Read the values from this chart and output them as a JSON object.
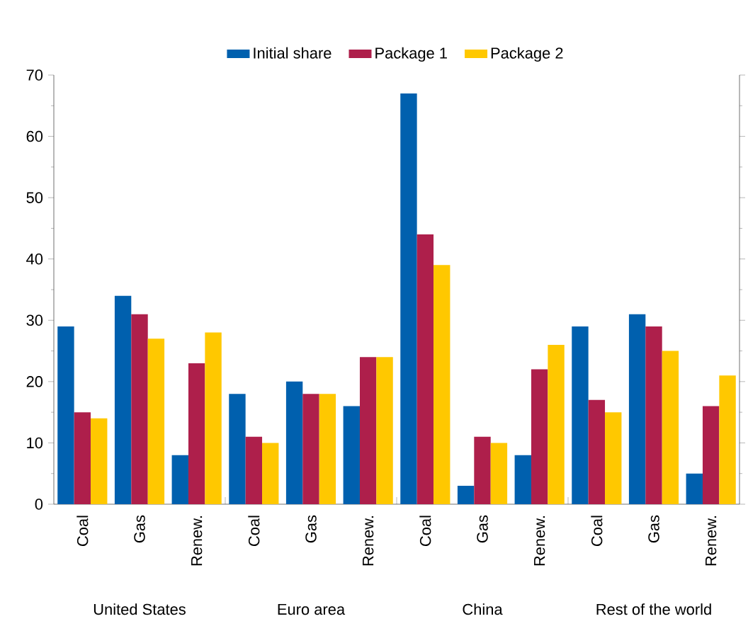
{
  "chart_data": {
    "type": "bar",
    "categories": [
      "Coal",
      "Gas",
      "Renew.",
      "Coal",
      "Gas",
      "Renew.",
      "Coal",
      "Gas",
      "Renew.",
      "Coal",
      "Gas",
      "Renew."
    ],
    "series": [
      {
        "name": "Initial share",
        "color": "#0060ae",
        "values": [
          29,
          34,
          8,
          18,
          20,
          16,
          67,
          3,
          8,
          29,
          31,
          5
        ]
      },
      {
        "name": "Package 1",
        "color": "#ae1f4b",
        "values": [
          15,
          31,
          23,
          11,
          18,
          24,
          44,
          11,
          22,
          17,
          29,
          16
        ]
      },
      {
        "name": "Package 2",
        "color": "#ffc800",
        "values": [
          14,
          27,
          28,
          10,
          18,
          24,
          39,
          10,
          26,
          15,
          25,
          21
        ]
      }
    ],
    "annotations": [
      "United States",
      "Euro area",
      "China",
      "Rest of the world"
    ],
    "ylim": [
      0,
      70
    ],
    "yticks": [
      0,
      10,
      20,
      30,
      40,
      50,
      60,
      70
    ],
    "tick_labels": "xy",
    "grid": false,
    "legend": "top"
  }
}
